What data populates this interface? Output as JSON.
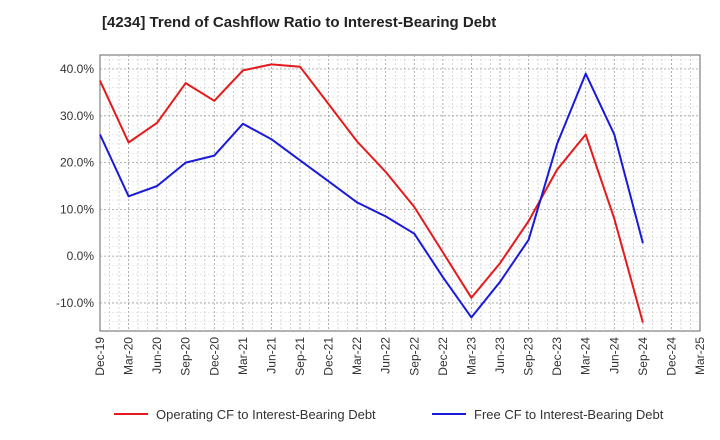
{
  "chart_data": {
    "type": "line",
    "title": "[4234]  Trend of Cashflow Ratio to Interest-Bearing Debt",
    "x": [
      "Dec-19",
      "Mar-20",
      "Jun-20",
      "Sep-20",
      "Dec-20",
      "Mar-21",
      "Jun-21",
      "Sep-21",
      "Dec-21",
      "Mar-22",
      "Jun-22",
      "Sep-22",
      "Dec-22",
      "Mar-23",
      "Jun-23",
      "Sep-23",
      "Dec-23",
      "Mar-24",
      "Jun-24",
      "Sep-24",
      "Dec-24",
      "Mar-25"
    ],
    "y_ticks": [
      "-10.0%",
      "0.0%",
      "10.0%",
      "20.0%",
      "30.0%",
      "40.0%"
    ],
    "y_tick_values": [
      -10,
      0,
      10,
      20,
      30,
      40
    ],
    "ylim": [
      -16,
      43
    ],
    "grid": true,
    "legend": "bottom",
    "series": [
      {
        "name": "Operating CF to Interest-Bearing Debt",
        "color": "#e41a1c",
        "values": [
          37.5,
          24.3,
          28.5,
          37.0,
          33.2,
          39.7,
          41.0,
          40.5,
          32.5,
          24.5,
          18.0,
          10.5,
          0.8,
          -8.9,
          -1.5,
          7.5,
          18.5,
          26.0,
          8.0,
          -14.2,
          null,
          null
        ]
      },
      {
        "name": "Free CF to Interest-Bearing Debt",
        "color": "#1a1adb",
        "values": [
          26.0,
          12.8,
          15.0,
          20.0,
          21.5,
          28.3,
          25.0,
          20.5,
          16.0,
          11.5,
          8.5,
          4.8,
          -4.5,
          -13.1,
          -5.5,
          3.5,
          24.0,
          39.0,
          26.0,
          2.8,
          null,
          null
        ]
      }
    ]
  }
}
